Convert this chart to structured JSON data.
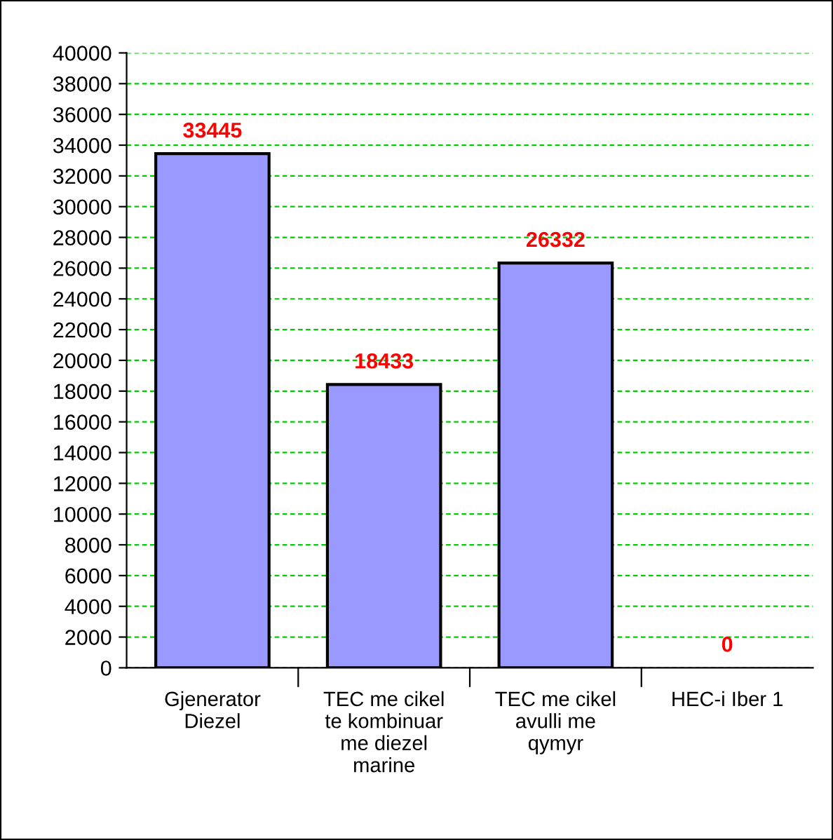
{
  "chart_data": {
    "type": "bar",
    "categories": [
      "Gjenerator\nDiezel",
      "TEC me cikel\nte kombinuar\nme diezel\nmarine",
      "TEC me cikel\navulli me\nqymyr",
      "HEC-i Iber 1"
    ],
    "values": [
      33445,
      18433,
      26332,
      0
    ],
    "color": "#9999ff",
    "ylim": [
      0,
      40000
    ],
    "yticks": [
      0,
      2000,
      4000,
      6000,
      8000,
      10000,
      12000,
      14000,
      16000,
      18000,
      20000,
      22000,
      24000,
      26000,
      28000,
      30000,
      32000,
      34000,
      36000,
      38000,
      40000
    ],
    "grid": "y",
    "data_labels": true
  }
}
